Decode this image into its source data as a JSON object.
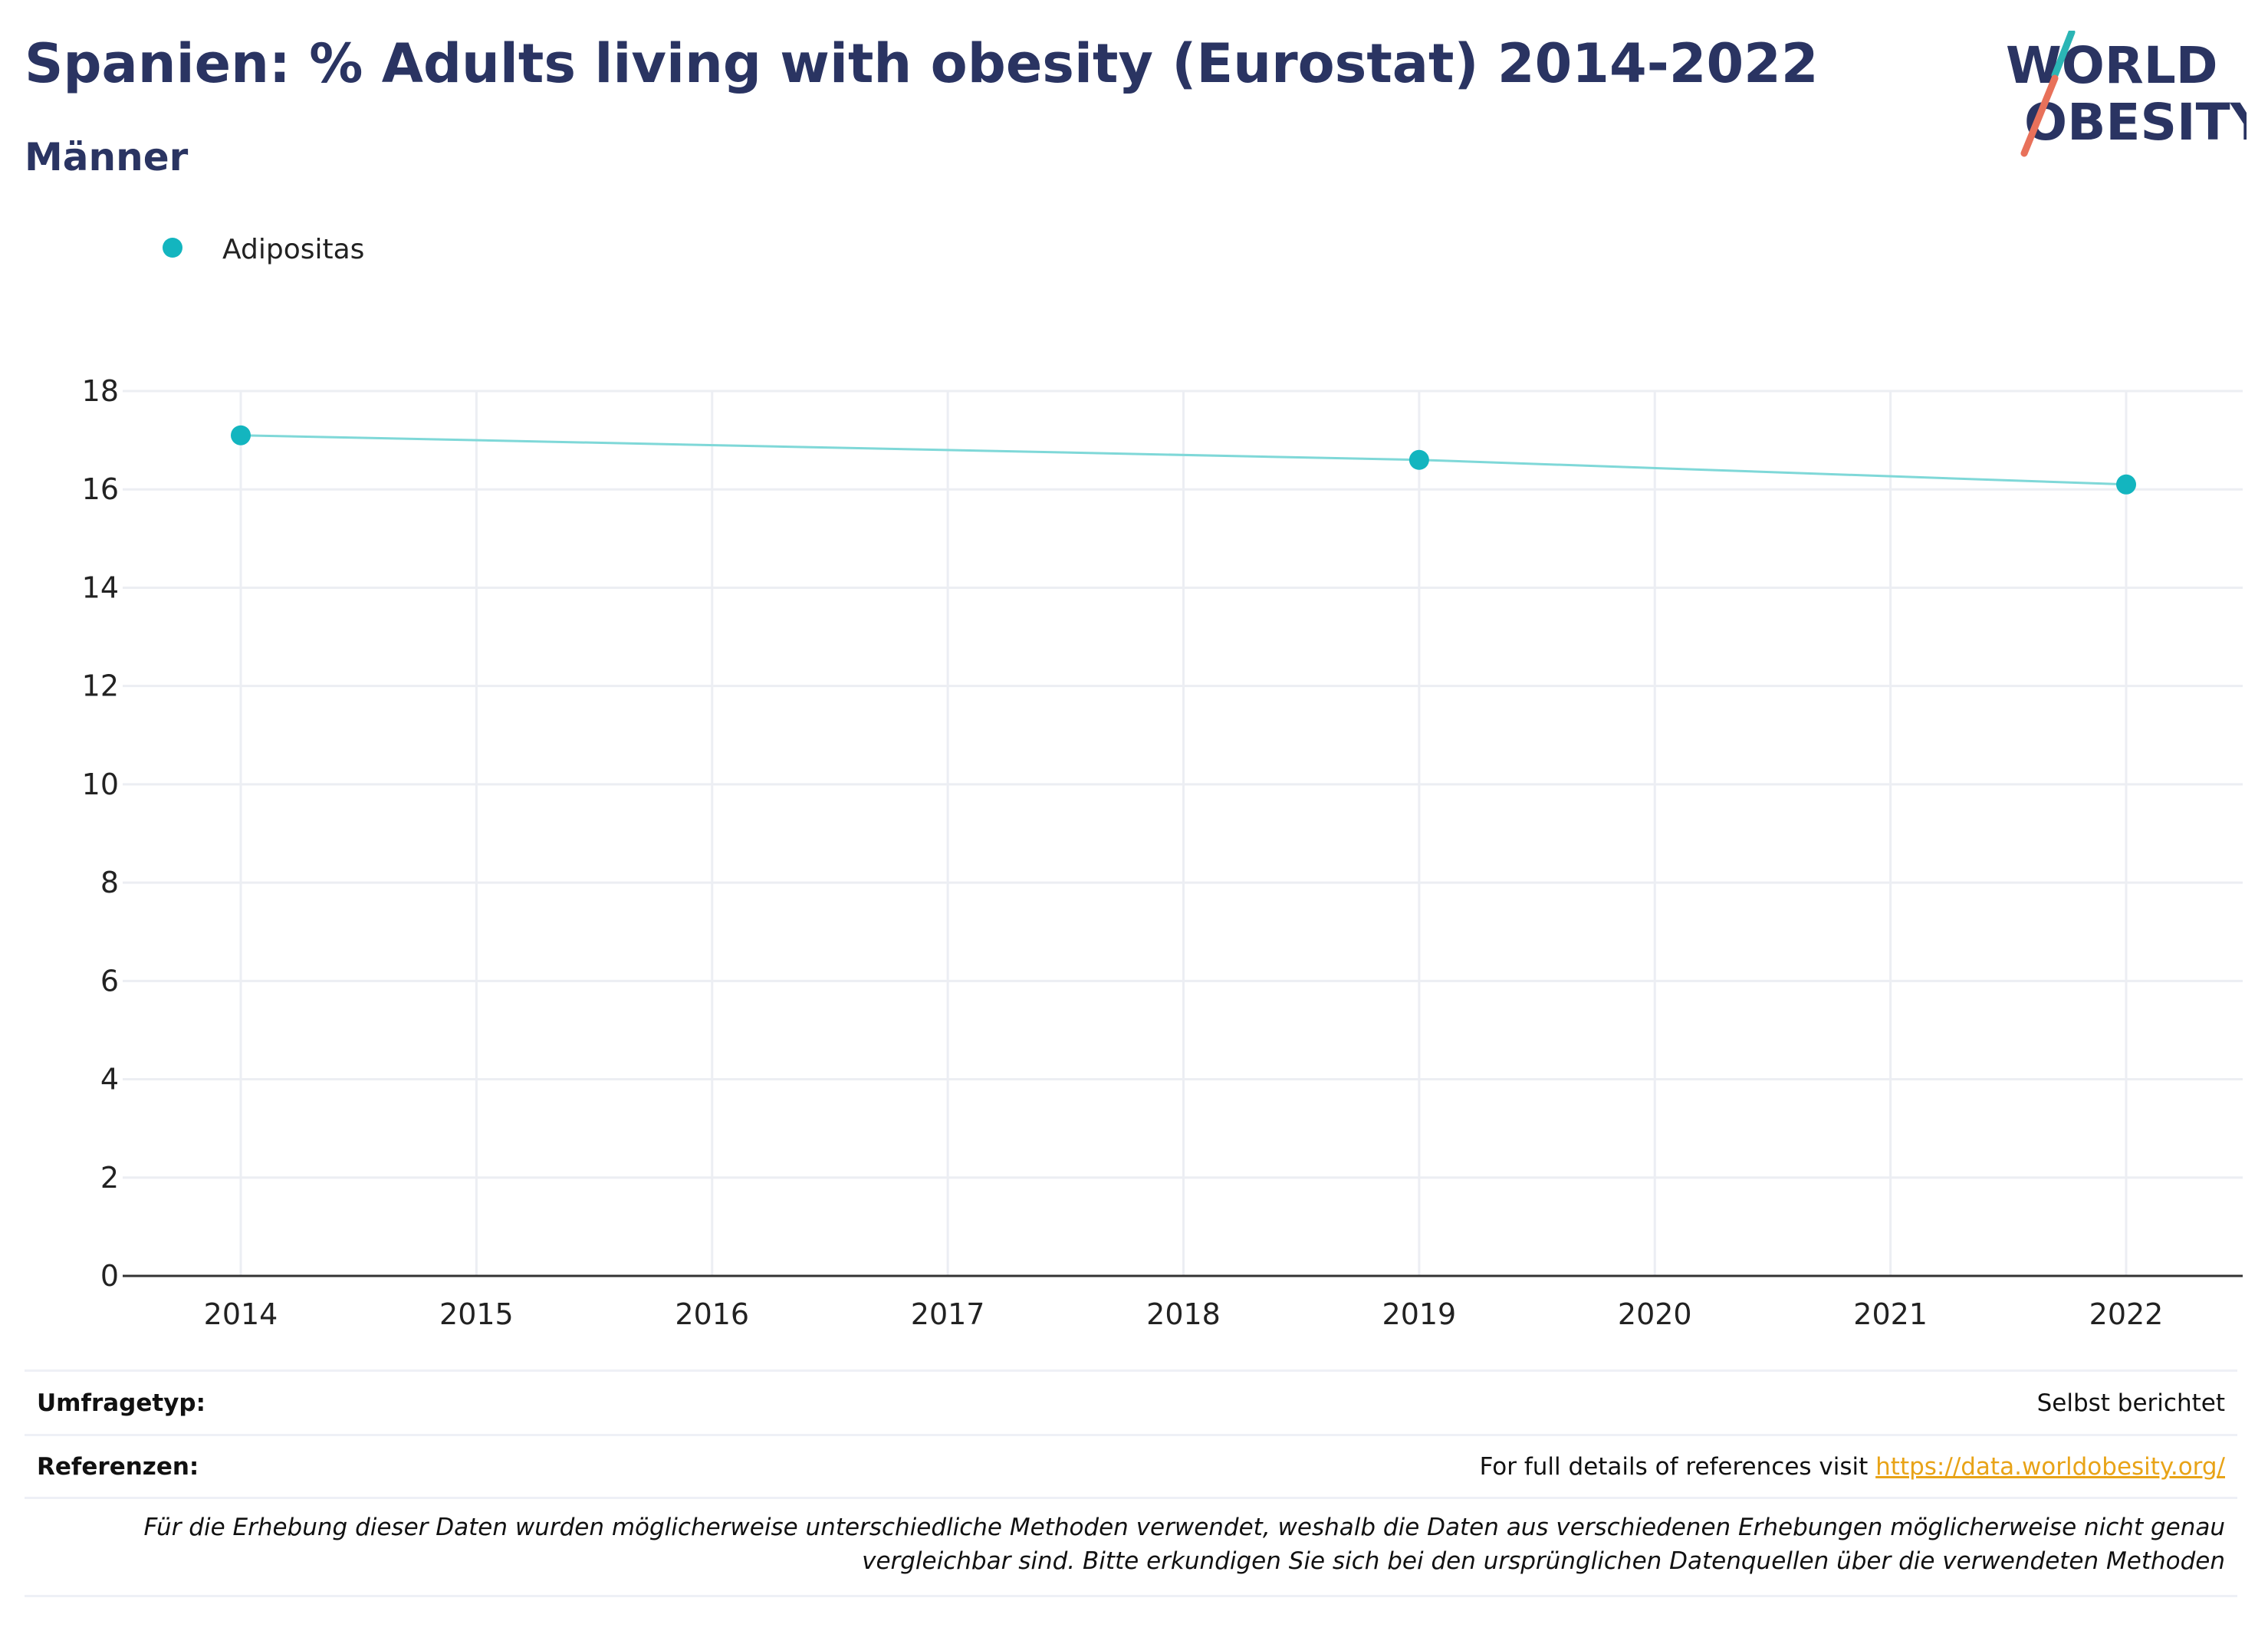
{
  "header": {
    "title": "Spanien: % Adults living with obesity (Eurostat) 2014-2022",
    "subtitle": "Männer"
  },
  "logo": {
    "line1": "WORLD",
    "line2": "OBESITY",
    "slash_top_color": "#2bb5b5",
    "slash_bottom_color": "#e8715a"
  },
  "chart_data": {
    "type": "line",
    "title": "Spanien: % Adults living with obesity (Eurostat) 2014-2022",
    "subtitle": "Männer",
    "x_ticks": [
      "2014",
      "2015",
      "2016",
      "2017",
      "2018",
      "2019",
      "2020",
      "2021",
      "2022"
    ],
    "y_ticks": [
      "0",
      "2",
      "4",
      "6",
      "8",
      "10",
      "12",
      "14",
      "16",
      "18"
    ],
    "xlim": [
      2014,
      2022
    ],
    "ylim": [
      0,
      18
    ],
    "grid": true,
    "legend_position": "top-left",
    "series": [
      {
        "name": "Adipositas",
        "color": "#13b5bf",
        "line_color": "#7fd8d8",
        "x": [
          2014,
          2019,
          2022
        ],
        "y": [
          17.1,
          16.6,
          16.1
        ]
      }
    ]
  },
  "footer": {
    "survey_label": "Umfragetyp:",
    "survey_value": "Selbst berichtet",
    "references_label": "Referenzen:",
    "references_text": "For full details of references visit",
    "references_link": "https://data.worldobesity.org/",
    "note": "Für die Erhebung dieser Daten wurden möglicherweise unterschiedliche Methoden verwendet, weshalb die Daten aus verschiedenen Erhebungen möglicherweise nicht genau vergleichbar sind. Bitte erkundigen Sie sich bei den ursprünglichen Datenquellen über die verwendeten Methoden"
  }
}
